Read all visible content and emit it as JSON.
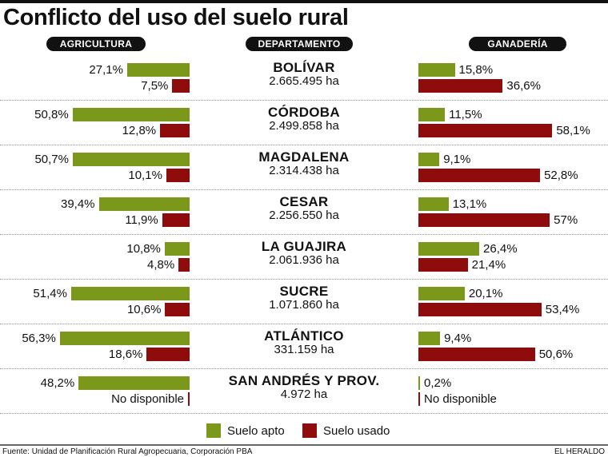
{
  "title": "Conflicto del uso del suelo rural",
  "headers": {
    "agri": "AGRICULTURA",
    "dept": "DEPARTAMENTO",
    "gana": "GANADERÍA"
  },
  "colors": {
    "apto": "#7b981b",
    "usado": "#8e0c0c"
  },
  "legend": {
    "apto": "Suelo apto",
    "usado": "Suelo usado"
  },
  "footer": {
    "source": "Fuente: Unidad de Planificación Rural Agropecuaria, Corporación PBA",
    "brand": "EL HERALDO"
  },
  "chart_data": {
    "type": "bar",
    "categories": [
      "BOLÍVAR",
      "CÓRDOBA",
      "MAGDALENA",
      "CESAR",
      "LA GUAJIRA",
      "SUCRE",
      "ATLÁNTICO",
      "SAN ANDRÉS Y PROV."
    ],
    "areas": [
      "2.665.495 ha",
      "2.499.858 ha",
      "2.314.438 ha",
      "2.256.550 ha",
      "2.061.936 ha",
      "1.071.860 ha",
      "331.159 ha",
      "4.972 ha"
    ],
    "agricultura": {
      "apto": [
        27.1,
        50.8,
        50.7,
        39.4,
        10.8,
        51.4,
        56.3,
        48.2
      ],
      "apto_labels": [
        "27,1%",
        "50,8%",
        "50,7%",
        "39,4%",
        "10,8%",
        "51,4%",
        "56,3%",
        "48,2%"
      ],
      "usado": [
        7.5,
        12.8,
        10.1,
        11.9,
        4.8,
        10.6,
        18.6,
        null
      ],
      "usado_labels": [
        "7,5%",
        "12,8%",
        "10,1%",
        "11,9%",
        "4,8%",
        "10,6%",
        "18,6%",
        "No disponible"
      ]
    },
    "ganaderia": {
      "apto": [
        15.8,
        11.5,
        9.1,
        13.1,
        26.4,
        20.1,
        9.4,
        0.2
      ],
      "apto_labels": [
        "15,8%",
        "11,5%",
        "9,1%",
        "13,1%",
        "26,4%",
        "20,1%",
        "9,4%",
        "0,2%"
      ],
      "usado": [
        36.6,
        58.1,
        52.8,
        57,
        21.4,
        53.4,
        50.6,
        null
      ],
      "usado_labels": [
        "36,6%",
        "58,1%",
        "52,8%",
        "57%",
        "21,4%",
        "53,4%",
        "50,6%",
        "No disponible"
      ]
    }
  }
}
